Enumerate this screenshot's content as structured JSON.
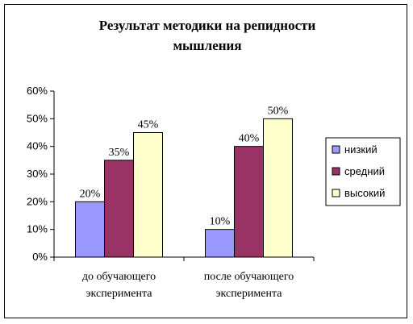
{
  "chart_data": {
    "type": "bar",
    "title_lines": [
      "Результат методики на репидности",
      "мышления"
    ],
    "categories": [
      [
        "до обучающего",
        "эксперимента"
      ],
      [
        "после обучающего",
        "эксперимента"
      ]
    ],
    "series": [
      {
        "name": "низкий",
        "values": [
          20,
          10
        ],
        "labels": [
          "20%",
          "10%"
        ],
        "color": "#9999ff"
      },
      {
        "name": "средний",
        "values": [
          35,
          40
        ],
        "labels": [
          "35%",
          "40%"
        ],
        "color": "#993366"
      },
      {
        "name": "высокий",
        "values": [
          45,
          50
        ],
        "labels": [
          "45%",
          "50%"
        ],
        "color": "#ffffcc"
      }
    ],
    "yticks": [
      "0%",
      "10%",
      "20%",
      "30%",
      "40%",
      "50%",
      "60%"
    ],
    "ylim": [
      0,
      60
    ],
    "grid": false,
    "legend_position": "right"
  }
}
